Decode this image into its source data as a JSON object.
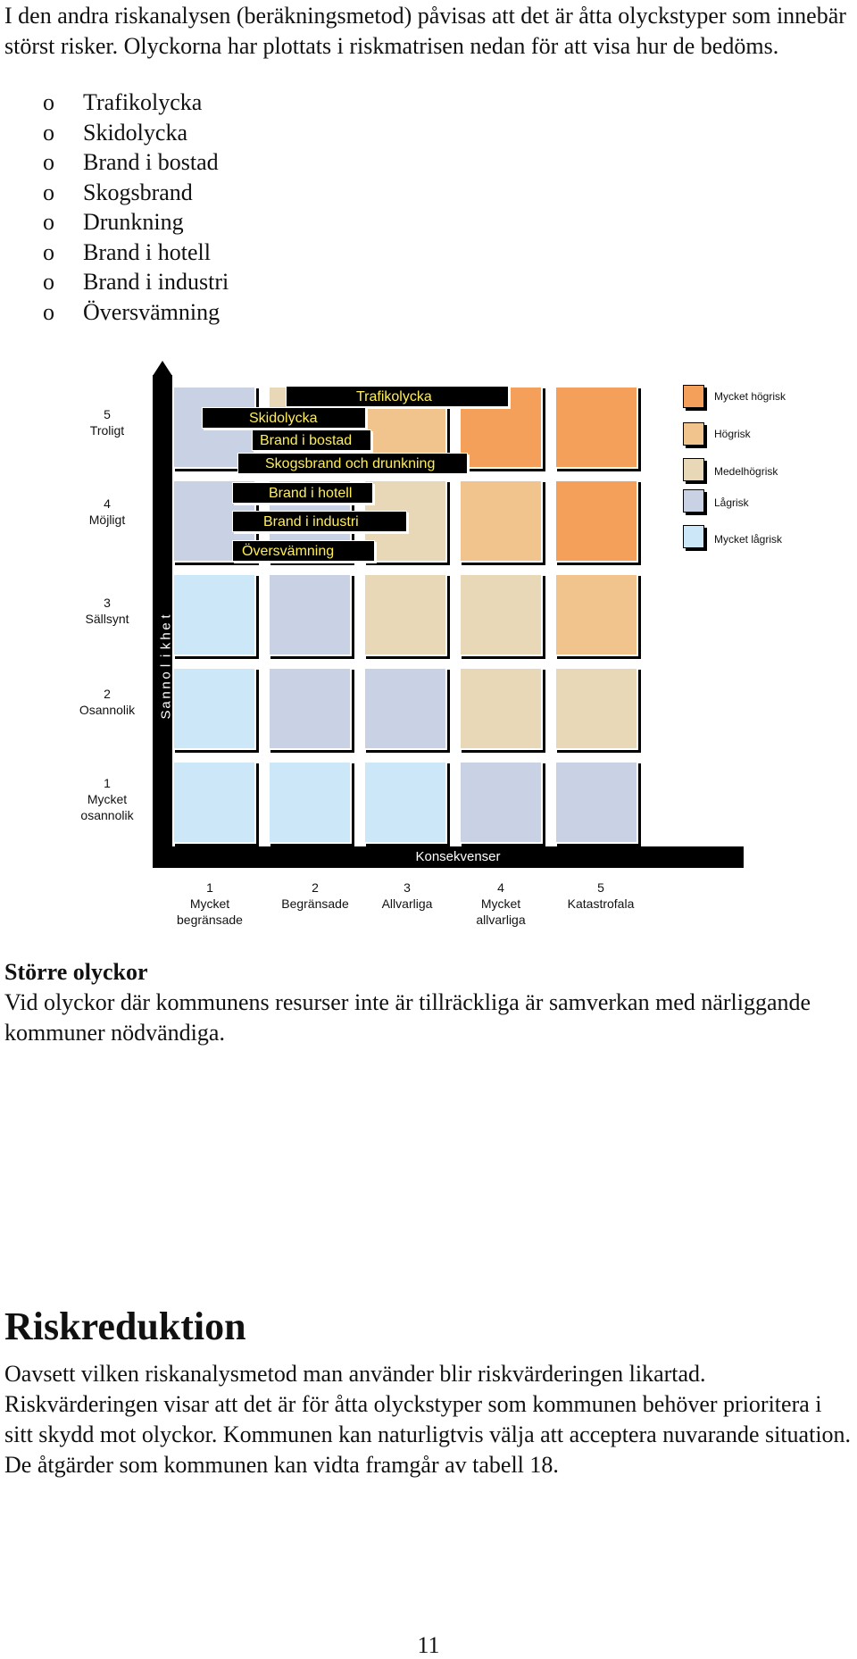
{
  "intro": "I den andra riskanalysen (beräkningsmetod) påvisas att det är åtta olyckstyper som innebär störst risker. Olyckorna har plottats i riskmatrisen nedan för att visa hur de bedöms.",
  "bullet_marker": "o",
  "bullets": [
    "Trafikolycka",
    "Skidolycka",
    "Brand i bostad",
    "Skogsbrand",
    "Drunkning",
    "Brand i hotell",
    "Brand i industri",
    "Översvämning"
  ],
  "matrix": {
    "y_axis_label": "Sannolikhet",
    "x_axis_label": "Konsekvenser",
    "rows": [
      {
        "num": "5",
        "label": "Troligt"
      },
      {
        "num": "4",
        "label": "Möjligt"
      },
      {
        "num": "3",
        "label": "Sällsynt"
      },
      {
        "num": "2",
        "label": "Osannolik"
      },
      {
        "num": "1",
        "label": "Mycket osannolik"
      }
    ],
    "columns": [
      {
        "num": "1",
        "label": "Mycket begränsade"
      },
      {
        "num": "2",
        "label": "Begränsade"
      },
      {
        "num": "3",
        "label": "Allvarliga"
      },
      {
        "num": "4",
        "label": "Mycket allvarliga"
      },
      {
        "num": "5",
        "label": "Katastrofala"
      }
    ],
    "grid": [
      [
        "low",
        "medium",
        "high",
        "very_high",
        "very_high"
      ],
      [
        "low",
        "low",
        "medium",
        "high",
        "very_high"
      ],
      [
        "very_low",
        "low",
        "medium",
        "medium",
        "high"
      ],
      [
        "very_low",
        "low",
        "low",
        "medium",
        "medium"
      ],
      [
        "very_low",
        "very_low",
        "very_low",
        "low",
        "low"
      ]
    ],
    "tags": [
      "Trafikolycka",
      "Skidolycka",
      "Brand i bostad",
      "Skogsbrand och drunkning",
      "Brand i hotell",
      "Brand i industri",
      "Översvämning"
    ],
    "colors": {
      "very_high": "#f5a05a",
      "high": "#f0c48c",
      "medium": "#e8d8b8",
      "low": "#c8d2e4",
      "very_low": "#cce8f8"
    },
    "legend": [
      {
        "key": "very_high",
        "label": "Mycket högrisk"
      },
      {
        "key": "high",
        "label": "Högrisk"
      },
      {
        "key": "medium",
        "label": "Medelhögrisk"
      },
      {
        "key": "low",
        "label": "Lågrisk"
      },
      {
        "key": "very_low",
        "label": "Mycket lågrisk"
      }
    ]
  },
  "section_large": {
    "title": "Större olyckor",
    "text": "Vid olyckor där kommunens resurser inte är tillräckliga är samverkan med närliggande kommuner nödvändiga."
  },
  "section_reduction": {
    "title": "Riskreduktion",
    "text": "Oavsett vilken riskanalysmetod man använder blir riskvärderingen likartad. Riskvärderingen visar att det är för åtta olyckstyper som kommunen behöver prioritera i sitt skydd mot olyckor. Kommunen kan naturligtvis välja att acceptera nuvarande situation. De åtgärder som kommunen kan vidta framgår av tabell 18."
  },
  "page_number": "11"
}
